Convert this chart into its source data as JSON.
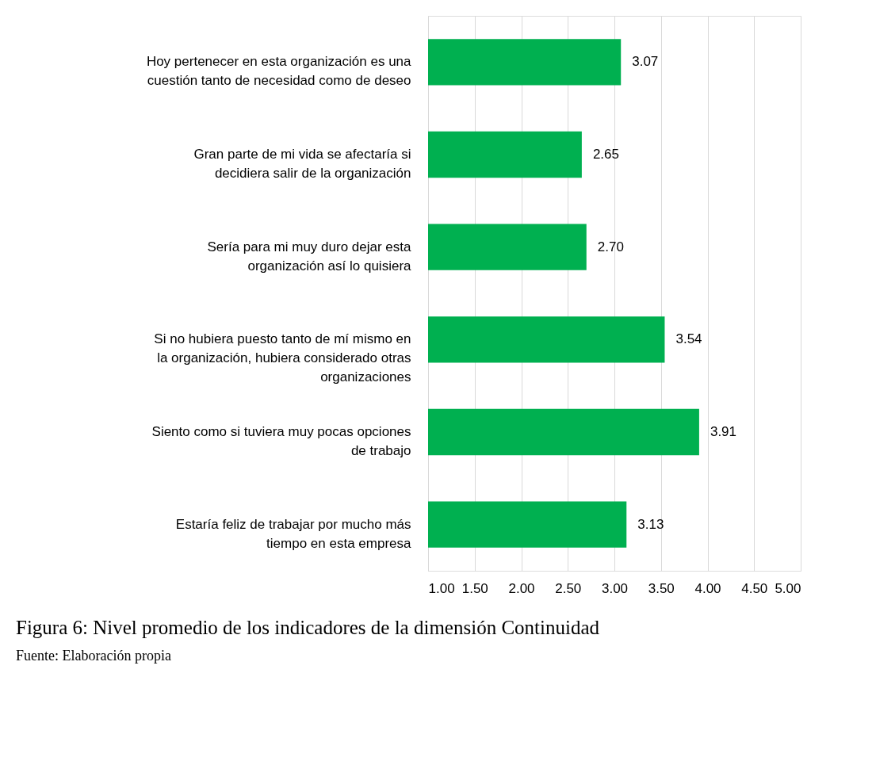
{
  "chart_data": {
    "type": "bar",
    "orientation": "horizontal",
    "title": "Figura 6: Nivel promedio de los indicadores de la dimensión Continuidad",
    "annotations": [
      "Fuente: Elaboración propia"
    ],
    "categories": [
      "Hoy pertenecer en esta organización es una cuestión tanto de necesidad como de deseo",
      "Gran parte de mi vida se afectaría si decidiera salir de la organización",
      "Sería para mi muy duro dejar esta organización así lo quisiera",
      "Si no hubiera puesto tanto de mí mismo en la organización, hubiera considerado otras organizaciones",
      "Siento como si tuviera muy pocas opciones de trabajo",
      "Estaría feliz de trabajar por mucho más tiempo en esta empresa"
    ],
    "values": [
      3.07,
      2.65,
      2.7,
      3.54,
      3.91,
      3.13
    ],
    "value_labels": [
      "3.07",
      "2.65",
      "2.70",
      "3.54",
      "3.91",
      "3.13"
    ],
    "color": "#00b050",
    "xlim": [
      1,
      5
    ],
    "xticks": [
      {
        "value": 1,
        "label": "1.00"
      },
      {
        "value": 1.5,
        "label": "1.50"
      },
      {
        "value": 2,
        "label": "2.00"
      },
      {
        "value": 2.5,
        "label": "2.50"
      },
      {
        "value": 3,
        "label": "3.00"
      },
      {
        "value": 3.5,
        "label": "3.50"
      },
      {
        "value": 4,
        "label": "4.00"
      },
      {
        "value": 4.5,
        "label": "4.50"
      },
      {
        "value": 5,
        "label": "5.00"
      }
    ],
    "grid": "x"
  }
}
